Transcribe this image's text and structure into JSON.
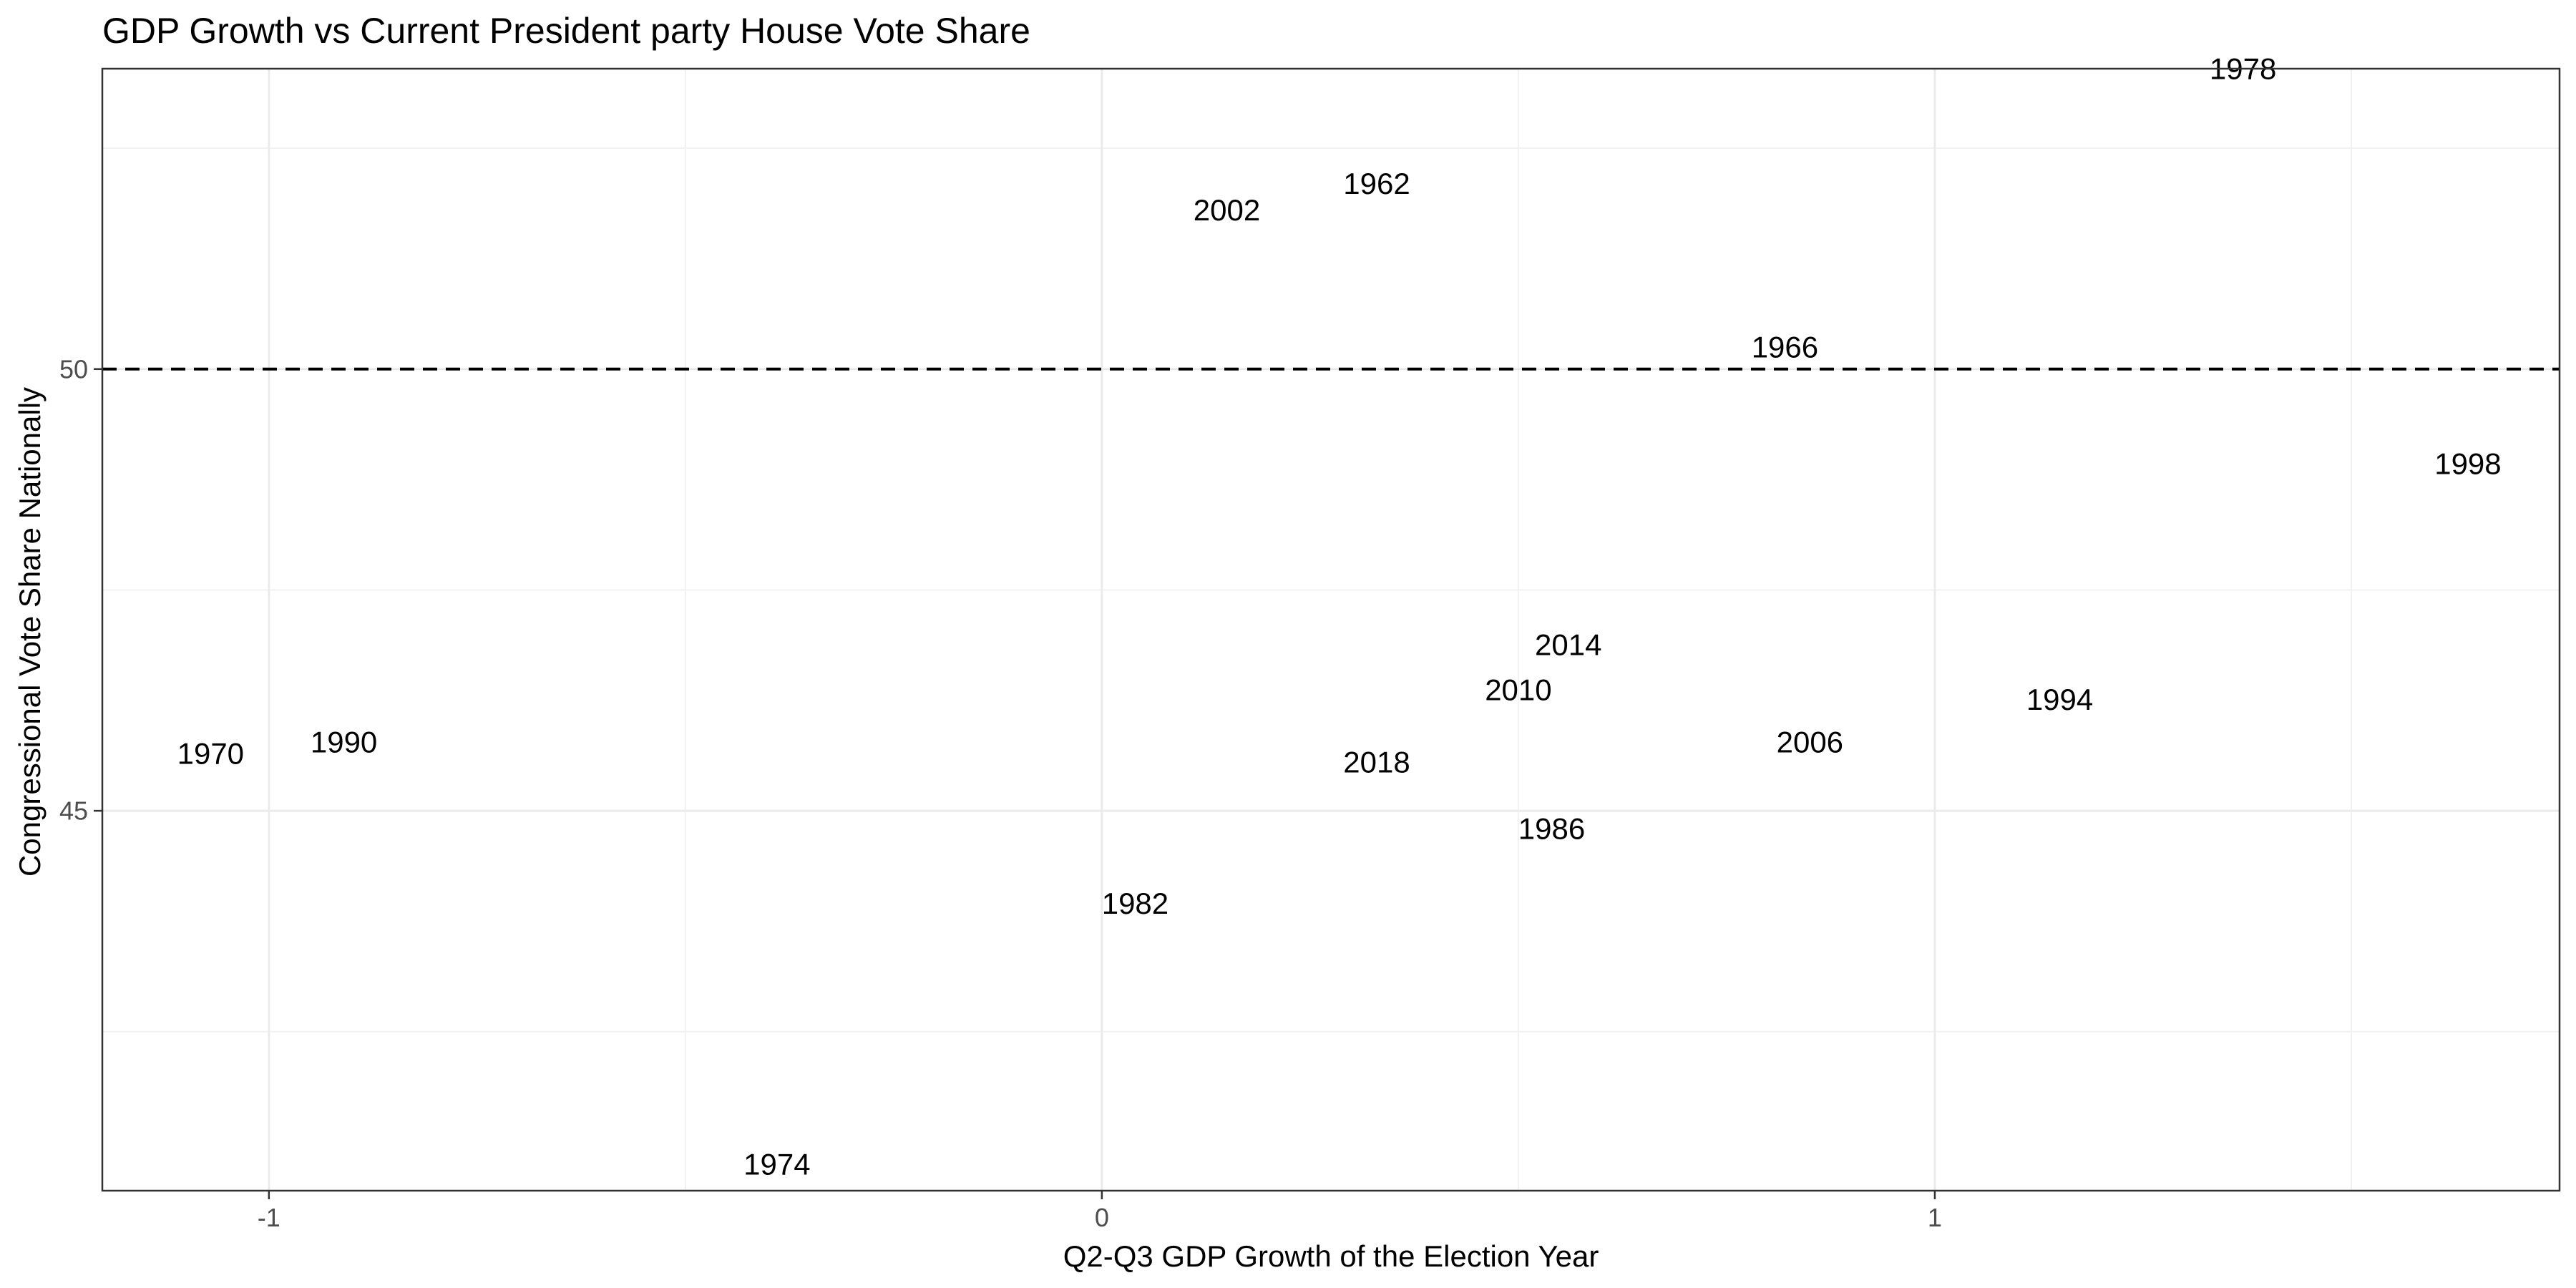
{
  "chart_data": {
    "type": "scatter",
    "title": "GDP Growth vs Current President party House Vote Share",
    "xlabel": "Q2-Q3 GDP Growth of the Election Year",
    "ylabel": "Congressional Vote Share Nationally",
    "xlim": [
      -1.2,
      1.75
    ],
    "ylim": [
      40.7,
      53.4
    ],
    "x_major_ticks": [
      -1,
      0,
      1
    ],
    "x_minor_ticks": [
      -0.5,
      0.5,
      1.5
    ],
    "y_major_ticks": [
      45,
      50
    ],
    "y_minor_ticks": [
      42.5,
      47.5,
      52.5
    ],
    "grid": true,
    "reference_line": {
      "y": 50,
      "style": "dashed"
    },
    "points": [
      {
        "label": "1962",
        "x": 0.33,
        "y": 52.1
      },
      {
        "label": "1966",
        "x": 0.82,
        "y": 50.25
      },
      {
        "label": "1970",
        "x": -1.07,
        "y": 45.65
      },
      {
        "label": "1974",
        "x": -0.39,
        "y": 41.0
      },
      {
        "label": "1978",
        "x": 1.37,
        "y": 53.4
      },
      {
        "label": "1982",
        "x": 0.04,
        "y": 43.95
      },
      {
        "label": "1986",
        "x": 0.54,
        "y": 44.8
      },
      {
        "label": "1990",
        "x": -0.91,
        "y": 45.78
      },
      {
        "label": "1994",
        "x": 1.15,
        "y": 46.26
      },
      {
        "label": "1998",
        "x": 1.64,
        "y": 48.93
      },
      {
        "label": "2002",
        "x": 0.15,
        "y": 51.8
      },
      {
        "label": "2006",
        "x": 0.85,
        "y": 45.78
      },
      {
        "label": "2010",
        "x": 0.5,
        "y": 46.37
      },
      {
        "label": "2014",
        "x": 0.56,
        "y": 46.88
      },
      {
        "label": "2018",
        "x": 0.33,
        "y": 45.55
      }
    ]
  }
}
